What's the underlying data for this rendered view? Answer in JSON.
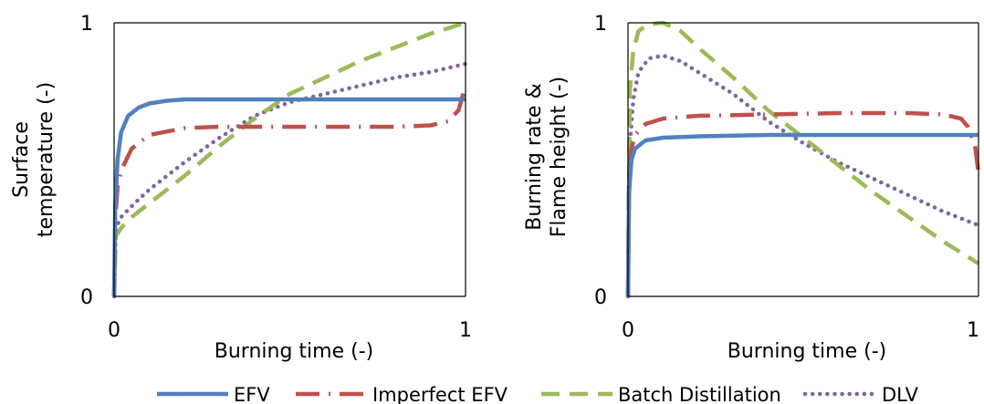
{
  "colors": {
    "EFV": "#4f81bd",
    "Imperfect EFV": "#c0504d",
    "Batch Distillation": "#9bbb59",
    "DLV": "#8064a2"
  },
  "legend": {
    "position": "bottom",
    "items": [
      {
        "name": "EFV",
        "color": "#4f81bd",
        "dash": "solid"
      },
      {
        "name": "Imperfect EFV",
        "color": "#c0504d",
        "dash": "long-dash-dot"
      },
      {
        "name": "Batch Distillation",
        "color": "#9bbb59",
        "dash": "dash"
      },
      {
        "name": "DLV",
        "color": "#8064a2",
        "dash": "dot"
      }
    ]
  },
  "chart_data": [
    {
      "type": "line",
      "title": "",
      "xlabel": "Burning time (-)",
      "ylabel_lines": [
        "Surface",
        "temperature (-)"
      ],
      "xlim": [
        0,
        1
      ],
      "ylim": [
        0,
        1
      ],
      "x_ticks": [
        "0",
        "1"
      ],
      "y_ticks": [
        "0",
        "1"
      ],
      "grid": false,
      "series": [
        {
          "name": "EFV",
          "x": [
            0,
            0.003,
            0.01,
            0.02,
            0.04,
            0.07,
            0.1,
            0.15,
            0.2,
            0.3,
            0.5,
            0.7,
            1.0
          ],
          "y": [
            0,
            0.33,
            0.5,
            0.6,
            0.66,
            0.69,
            0.705,
            0.715,
            0.72,
            0.72,
            0.72,
            0.72,
            0.72
          ]
        },
        {
          "name": "Imperfect EFV",
          "x": [
            0,
            0.003,
            0.01,
            0.02,
            0.05,
            0.1,
            0.2,
            0.3,
            0.4,
            0.6,
            0.8,
            0.9,
            0.95,
            0.98,
            1.0
          ],
          "y": [
            0,
            0.28,
            0.4,
            0.46,
            0.54,
            0.59,
            0.615,
            0.62,
            0.62,
            0.62,
            0.62,
            0.625,
            0.64,
            0.68,
            0.77
          ]
        },
        {
          "name": "Batch Distillation",
          "x": [
            0,
            0.005,
            0.02,
            0.05,
            0.1,
            0.2,
            0.3,
            0.4,
            0.5,
            0.6,
            0.7,
            0.8,
            0.9,
            1.0
          ],
          "y": [
            0,
            0.22,
            0.25,
            0.29,
            0.34,
            0.44,
            0.55,
            0.65,
            0.74,
            0.8,
            0.86,
            0.91,
            0.96,
            1.0
          ]
        },
        {
          "name": "DLV",
          "x": [
            0,
            0.005,
            0.02,
            0.05,
            0.1,
            0.2,
            0.3,
            0.4,
            0.5,
            0.6,
            0.7,
            0.8,
            0.9,
            1.0
          ],
          "y": [
            0,
            0.25,
            0.29,
            0.33,
            0.39,
            0.49,
            0.58,
            0.66,
            0.71,
            0.74,
            0.77,
            0.8,
            0.82,
            0.85
          ]
        }
      ]
    },
    {
      "type": "line",
      "title": "",
      "xlabel": "Burning time (-)",
      "ylabel_lines": [
        "Burning rate &",
        "Flame height (-)"
      ],
      "xlim": [
        0,
        1
      ],
      "ylim": [
        0,
        1
      ],
      "x_ticks": [
        "0",
        "1"
      ],
      "y_ticks": [
        "0",
        "1"
      ],
      "grid": false,
      "series": [
        {
          "name": "EFV",
          "x": [
            0,
            0.003,
            0.01,
            0.02,
            0.05,
            0.1,
            0.2,
            0.4,
            0.6,
            0.8,
            1.0
          ],
          "y": [
            0,
            0.38,
            0.5,
            0.54,
            0.57,
            0.58,
            0.585,
            0.59,
            0.59,
            0.59,
            0.59
          ]
        },
        {
          "name": "Imperfect EFV",
          "x": [
            0,
            0.003,
            0.01,
            0.02,
            0.05,
            0.1,
            0.2,
            0.4,
            0.6,
            0.8,
            0.9,
            0.95,
            0.97,
            0.99,
            1.0
          ],
          "y": [
            0,
            0.45,
            0.54,
            0.59,
            0.63,
            0.65,
            0.66,
            0.665,
            0.67,
            0.67,
            0.665,
            0.65,
            0.62,
            0.55,
            0.45
          ]
        },
        {
          "name": "Batch Distillation",
          "x": [
            0,
            0.005,
            0.015,
            0.03,
            0.06,
            0.1,
            0.15,
            0.2,
            0.3,
            0.4,
            0.5,
            0.6,
            0.7,
            0.8,
            0.9,
            1.0
          ],
          "y": [
            0,
            0.75,
            0.9,
            0.97,
            0.995,
            1.0,
            0.97,
            0.91,
            0.8,
            0.68,
            0.58,
            0.48,
            0.38,
            0.29,
            0.2,
            0.12
          ]
        },
        {
          "name": "DLV",
          "x": [
            0,
            0.005,
            0.015,
            0.03,
            0.06,
            0.1,
            0.15,
            0.2,
            0.3,
            0.4,
            0.5,
            0.6,
            0.7,
            0.8,
            0.9,
            1.0
          ],
          "y": [
            0,
            0.55,
            0.72,
            0.82,
            0.87,
            0.88,
            0.86,
            0.82,
            0.74,
            0.64,
            0.56,
            0.49,
            0.43,
            0.37,
            0.31,
            0.26
          ]
        }
      ]
    }
  ]
}
